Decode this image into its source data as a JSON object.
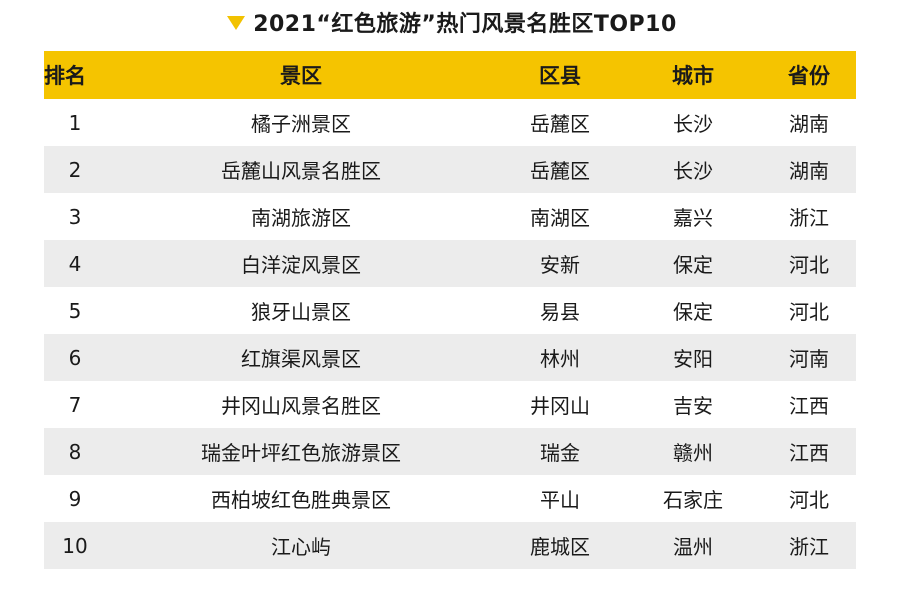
{
  "title": "2021“红色旅游”热门风景名胜区TOP10",
  "colors": {
    "accent": "#f5c400",
    "stripe": "#ececec"
  },
  "table": {
    "headers": [
      "排名",
      "景区",
      "区县",
      "城市",
      "省份"
    ],
    "rows": [
      [
        "1",
        "橘子洲景区",
        "岳麓区",
        "长沙",
        "湖南"
      ],
      [
        "2",
        "岳麓山风景名胜区",
        "岳麓区",
        "长沙",
        "湖南"
      ],
      [
        "3",
        "南湖旅游区",
        "南湖区",
        "嘉兴",
        "浙江"
      ],
      [
        "4",
        "白洋淀风景区",
        "安新",
        "保定",
        "河北"
      ],
      [
        "5",
        "狼牙山景区",
        "易县",
        "保定",
        "河北"
      ],
      [
        "6",
        "红旗渠风景区",
        "林州",
        "安阳",
        "河南"
      ],
      [
        "7",
        "井冈山风景名胜区",
        "井冈山",
        "吉安",
        "江西"
      ],
      [
        "8",
        "瑞金叶坪红色旅游景区",
        "瑞金",
        "赣州",
        "江西"
      ],
      [
        "9",
        "西柏坡红色胜典景区",
        "平山",
        "石家庄",
        "河北"
      ],
      [
        "10",
        "江心屿",
        "鹿城区",
        "温州",
        "浙江"
      ]
    ]
  }
}
